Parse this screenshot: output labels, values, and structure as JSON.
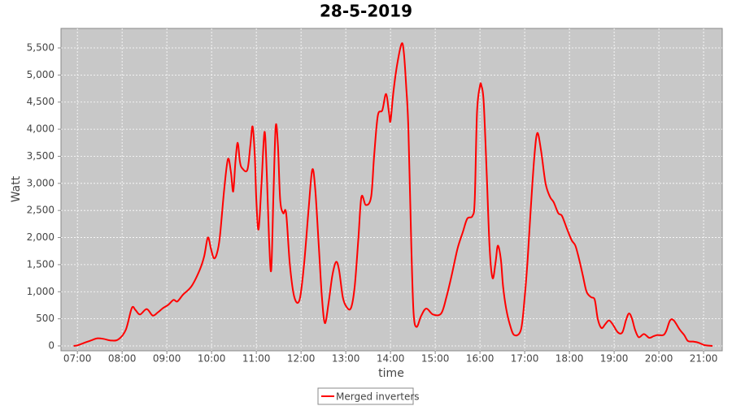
{
  "chart_data": {
    "type": "line",
    "title": "28-5-2019",
    "x_label": "time",
    "y_label": "Watt",
    "x": [
      "06:55",
      "07:00",
      "07:10",
      "07:20",
      "07:27",
      "07:35",
      "07:45",
      "07:55",
      "08:05",
      "08:13",
      "08:18",
      "08:24",
      "08:33",
      "08:41",
      "08:48",
      "08:55",
      "09:02",
      "09:09",
      "09:14",
      "09:22",
      "09:33",
      "09:44",
      "09:50",
      "09:55",
      "09:59",
      "10:03",
      "10:07",
      "10:11",
      "10:17",
      "10:22",
      "10:26",
      "10:29",
      "10:32",
      "10:35",
      "10:38",
      "10:41",
      "10:48",
      "10:52",
      "10:55",
      "10:58",
      "11:00",
      "11:03",
      "11:07",
      "11:11",
      "11:14",
      "11:17",
      "11:20",
      "11:23",
      "11:26",
      "11:29",
      "11:32",
      "11:36",
      "11:40",
      "11:45",
      "11:51",
      "11:58",
      "12:04",
      "12:10",
      "12:15",
      "12:19",
      "12:24",
      "12:28",
      "12:32",
      "12:37",
      "12:42",
      "12:47",
      "12:51",
      "12:56",
      "13:01",
      "13:07",
      "13:12",
      "13:17",
      "13:21",
      "13:27",
      "13:34",
      "13:38",
      "13:43",
      "13:49",
      "13:54",
      "13:58",
      "14:00",
      "14:04",
      "14:09",
      "14:15",
      "14:18",
      "14:21",
      "14:24",
      "14:28",
      "14:31",
      "14:35",
      "14:41",
      "14:48",
      "14:57",
      "15:08",
      "15:15",
      "15:22",
      "15:30",
      "15:37",
      "15:43",
      "15:50",
      "15:53",
      "15:56",
      "16:00",
      "16:02",
      "16:05",
      "16:09",
      "16:13",
      "16:17",
      "16:21",
      "16:24",
      "16:28",
      "16:31",
      "16:35",
      "16:40",
      "16:46",
      "16:55",
      "17:00",
      "17:04",
      "17:08",
      "17:13",
      "17:17",
      "17:22",
      "17:28",
      "17:34",
      "17:39",
      "17:45",
      "17:50",
      "17:57",
      "18:03",
      "18:08",
      "18:13",
      "18:18",
      "18:23",
      "18:29",
      "18:34",
      "18:38",
      "18:43",
      "18:48",
      "18:53",
      "18:58",
      "19:05",
      "19:11",
      "19:16",
      "19:20",
      "19:24",
      "19:28",
      "19:33",
      "19:40",
      "19:47",
      "19:53",
      "19:58",
      "20:06",
      "20:10",
      "20:15",
      "20:20",
      "20:28",
      "20:34",
      "20:39",
      "20:46",
      "20:53",
      "21:00",
      "21:04",
      "21:12"
    ],
    "series": [
      {
        "name": "Merged inverters",
        "color": "#ff0000",
        "values": [
          0,
          10,
          60,
          110,
          140,
          130,
          100,
          120,
          300,
          700,
          660,
          580,
          680,
          560,
          620,
          700,
          760,
          850,
          820,
          950,
          1100,
          1400,
          1650,
          2000,
          1800,
          1620,
          1700,
          2000,
          2900,
          3450,
          3200,
          2850,
          3400,
          3750,
          3400,
          3280,
          3250,
          3700,
          4050,
          3500,
          2700,
          2150,
          3000,
          3950,
          3200,
          2000,
          1400,
          2800,
          4050,
          3700,
          2700,
          2450,
          2450,
          1500,
          900,
          850,
          1500,
          2500,
          3250,
          2900,
          1800,
          900,
          420,
          800,
          1300,
          1550,
          1400,
          900,
          720,
          700,
          1100,
          2000,
          2750,
          2600,
          2750,
          3500,
          4250,
          4350,
          4650,
          4300,
          4150,
          4700,
          5200,
          5580,
          5400,
          4800,
          4000,
          1800,
          600,
          350,
          550,
          690,
          580,
          600,
          900,
          1300,
          1800,
          2100,
          2350,
          2400,
          2700,
          4300,
          4800,
          4800,
          4500,
          3200,
          1800,
          1250,
          1550,
          1850,
          1600,
          1100,
          700,
          400,
          200,
          300,
          900,
          1600,
          2500,
          3500,
          3930,
          3600,
          3000,
          2750,
          2650,
          2450,
          2400,
          2150,
          1950,
          1850,
          1600,
          1300,
          1000,
          900,
          850,
          500,
          330,
          400,
          470,
          400,
          250,
          250,
          480,
          600,
          500,
          300,
          160,
          220,
          150,
          180,
          200,
          200,
          280,
          470,
          470,
          300,
          200,
          90,
          80,
          60,
          20,
          10,
          0
        ]
      }
    ],
    "xlim": [
      "06:38",
      "21:25"
    ],
    "xticks": [
      "07:00",
      "08:00",
      "09:00",
      "10:00",
      "11:00",
      "12:00",
      "13:00",
      "14:00",
      "15:00",
      "16:00",
      "17:00",
      "18:00",
      "19:00",
      "20:00",
      "21:00"
    ],
    "ylim": [
      -90,
      5860
    ],
    "yticks": [
      0,
      500,
      {
        "value": 1000,
        "label": "1,000"
      },
      {
        "value": 1500,
        "label": "1,500"
      },
      {
        "value": 2000,
        "label": "2,000"
      },
      {
        "value": 2500,
        "label": "2,500"
      },
      {
        "value": 3000,
        "label": "3,000"
      },
      {
        "value": 3500,
        "label": "3,500"
      },
      {
        "value": 4000,
        "label": "4,000"
      },
      {
        "value": 4500,
        "label": "4,500"
      },
      {
        "value": 5000,
        "label": "5,000"
      },
      {
        "value": 5500,
        "label": "5,500"
      }
    ],
    "grid": true,
    "legend": "bottom"
  }
}
